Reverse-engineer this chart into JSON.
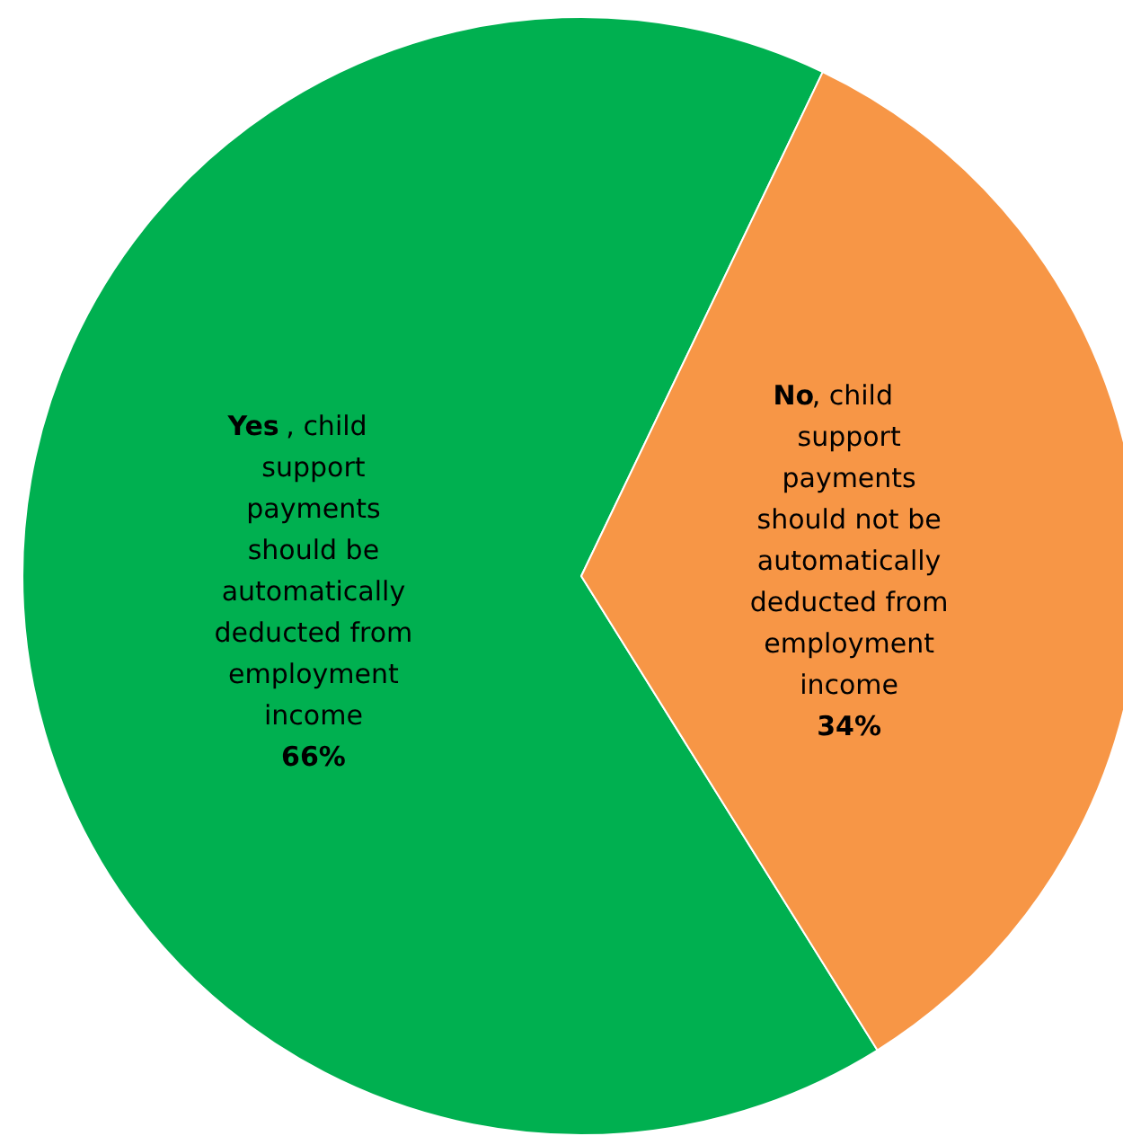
{
  "chart_data": {
    "type": "pie",
    "categories": [
      "Yes, child support payments should be automatically deducted from employment income",
      "No, child support payments should not be automatically deducted from employment income"
    ],
    "values": [
      66,
      34
    ],
    "colors": [
      "#00b050",
      "#f79646"
    ],
    "value_labels": [
      "66%",
      "34%"
    ]
  }
}
